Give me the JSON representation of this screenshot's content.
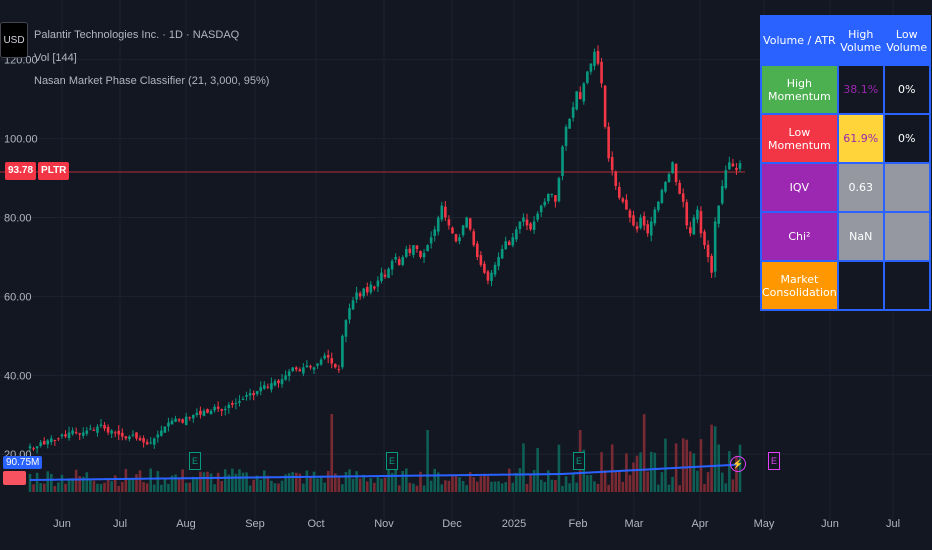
{
  "header": {
    "symbol_title": "Palantir Technologies Inc. · 1D · NASDAQ",
    "volume_indicator": "Vol [144]",
    "phase_indicator": "Nasan Market Phase Classifier (21, 3,000, 95%)",
    "currency": "USD"
  },
  "price_tag": {
    "value": "93.78",
    "ticker": "PLTR"
  },
  "volume_tag": "90.75M",
  "y_axis_labels": [
    "120.00",
    "100.00",
    "80.00",
    "60.00",
    "40.00",
    "20.00"
  ],
  "x_axis_labels": [
    "Jun",
    "Jul",
    "Aug",
    "Sep",
    "Oct",
    "Nov",
    "Dec",
    "2025",
    "Feb",
    "Mar",
    "Apr",
    "May",
    "Jun",
    "Jul"
  ],
  "table": {
    "header": [
      "Volume / ATR",
      "High Volume",
      "Low Volume"
    ],
    "rows": [
      {
        "label": "High Momentum",
        "high": "38.1%",
        "low": "0%"
      },
      {
        "label": "Low Momentum",
        "high": "61.9%",
        "low": "0%"
      },
      {
        "label": "IQV",
        "high": "0.63",
        "low": ""
      },
      {
        "label": "Chi²",
        "high": "NaN",
        "low": ""
      },
      {
        "label": "Market Consolidation",
        "high": "",
        "low": ""
      }
    ]
  },
  "markers": {
    "earnings": "E",
    "dividend": "⚡"
  },
  "colors": {
    "up": "#089981",
    "down": "#f23645",
    "accent": "#2962ff",
    "bg": "#131722"
  },
  "chart_data": {
    "type": "candlestick",
    "y_range": [
      16,
      125
    ],
    "price_closes": [
      22,
      21.5,
      22,
      23,
      22.5,
      23.5,
      24,
      23.5,
      24,
      25,
      24.5,
      25.5,
      26,
      25.5,
      25,
      25.5,
      26,
      26.5,
      26,
      27,
      27.5,
      26.5,
      25.5,
      26,
      25.5,
      25,
      24.5,
      24,
      24.5,
      25,
      24,
      23.5,
      23,
      22.5,
      23,
      24,
      25,
      26,
      27,
      28,
      28.5,
      29,
      28.5,
      28,
      29.5,
      29.2,
      30,
      30.5,
      30,
      31,
      30.5,
      31,
      32,
      31.5,
      31,
      31.5,
      32.5,
      32.5,
      33,
      33.5,
      34,
      35,
      35.5,
      35,
      36,
      37,
      37.5,
      37,
      38,
      38.5,
      38,
      39,
      40,
      41,
      42,
      41.5,
      41,
      42,
      42.5,
      42,
      42,
      43,
      44,
      45,
      44.5,
      43,
      42,
      41.5,
      50,
      54,
      57,
      59,
      61,
      60,
      62,
      61,
      63,
      62,
      64,
      66,
      65,
      67,
      69,
      70,
      68,
      70,
      72,
      71,
      73,
      72,
      70,
      71,
      73,
      75,
      77,
      80,
      83,
      80,
      78,
      76,
      74,
      75,
      78,
      80,
      77,
      73,
      70,
      68,
      66,
      64,
      66,
      68,
      70,
      72,
      74,
      73,
      75,
      77,
      79,
      80,
      78,
      77,
      79,
      81,
      83,
      84,
      86,
      86,
      84,
      90,
      98,
      103,
      105,
      108,
      112,
      110,
      114,
      117,
      119,
      122,
      119,
      114,
      103,
      95,
      92,
      88,
      85,
      84,
      82,
      80,
      78,
      77,
      80,
      78,
      76,
      79,
      82,
      84,
      87,
      89,
      91,
      94,
      89,
      86,
      84,
      78,
      76,
      80,
      82,
      76,
      73,
      70,
      66,
      79,
      83,
      88,
      92,
      94,
      93,
      92,
      93.78
    ],
    "volume_range_m": [
      0,
      400
    ]
  }
}
